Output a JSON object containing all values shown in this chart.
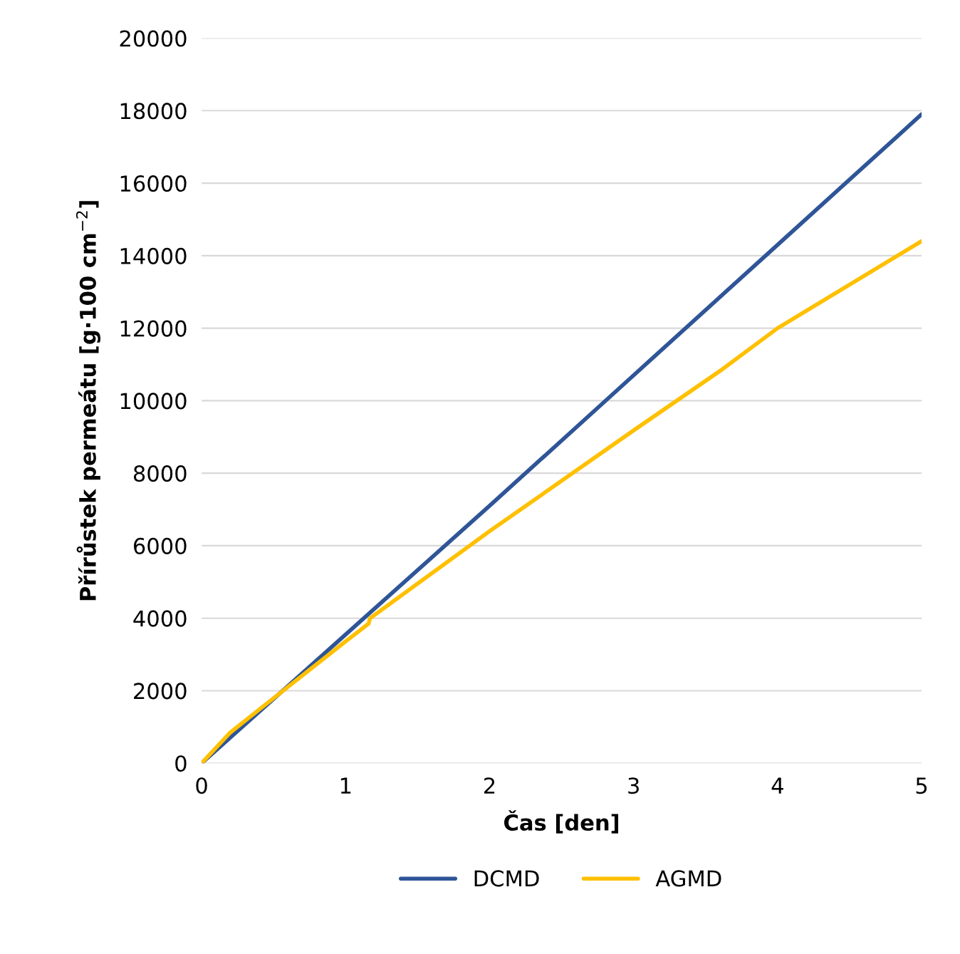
{
  "chart_data": {
    "type": "line",
    "xlabel": "Čas [den]",
    "ylabel": "Přírůstek permeátu [g·100 cm$^{−2}$]",
    "xlim": [
      0,
      5
    ],
    "xticks": [
      0,
      1,
      2,
      3,
      4,
      5
    ],
    "ylim": [
      0,
      20000
    ],
    "yticks": [
      0,
      2000,
      4000,
      6000,
      8000,
      10000,
      12000,
      14000,
      16000,
      18000,
      20000
    ],
    "grid": "y",
    "legend": "bottom",
    "marker": "none",
    "line_style": "solid",
    "series": [
      {
        "name": "DCMD",
        "color": "#2f5597",
        "x": [
          0,
          1,
          2,
          3,
          4,
          5
        ],
        "values": [
          0,
          3550,
          7100,
          10700,
          14300,
          17900
        ]
      },
      {
        "name": "AGMD",
        "color": "#ffc000",
        "x": [
          0,
          0.2,
          0.4,
          1.0,
          1.16,
          1.17,
          2.0,
          3.0,
          3.6,
          4.0,
          5.0
        ],
        "values": [
          0,
          850,
          1480,
          3360,
          3850,
          4000,
          6400,
          9180,
          10820,
          12000,
          14400
        ]
      }
    ]
  }
}
